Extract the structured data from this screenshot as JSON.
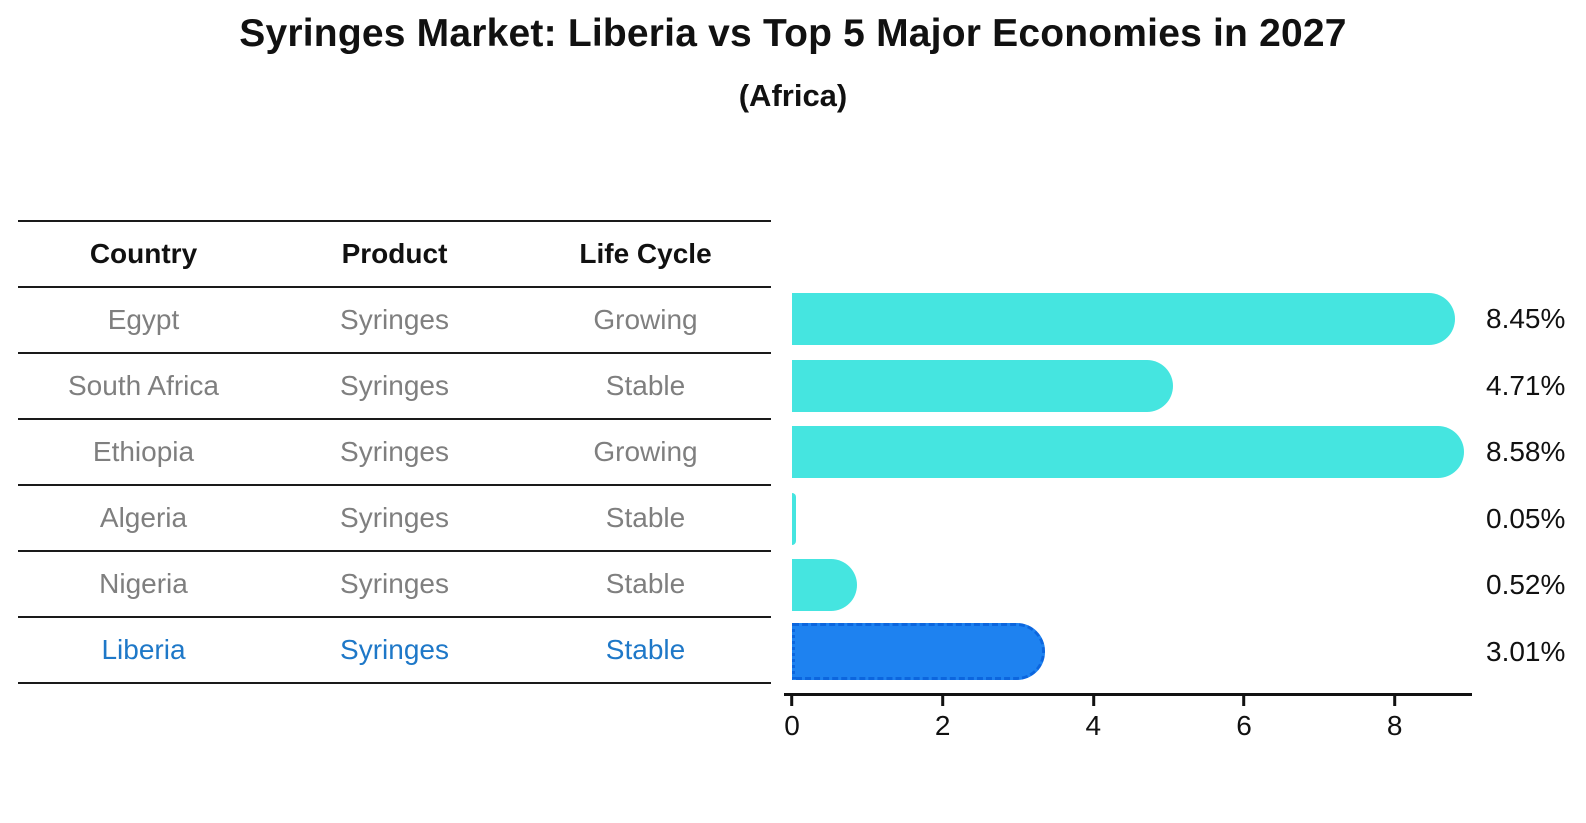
{
  "title": "Syringes Market: Liberia vs Top 5 Major Economies in 2027",
  "subtitle": "(Africa)",
  "table": {
    "headers": [
      "Country",
      "Product",
      "Life Cycle"
    ],
    "rows": [
      {
        "country": "Egypt",
        "product": "Syringes",
        "life_cycle": "Growing",
        "highlight": false
      },
      {
        "country": "South Africa",
        "product": "Syringes",
        "life_cycle": "Stable",
        "highlight": false
      },
      {
        "country": "Ethiopia",
        "product": "Syringes",
        "life_cycle": "Growing",
        "highlight": false
      },
      {
        "country": "Algeria",
        "product": "Syringes",
        "life_cycle": "Stable",
        "highlight": false
      },
      {
        "country": "Nigeria",
        "product": "Syringes",
        "life_cycle": "Stable",
        "highlight": false
      },
      {
        "country": "Liberia",
        "product": "Syringes",
        "life_cycle": "Stable",
        "highlight": true
      }
    ]
  },
  "chart_data": {
    "type": "bar",
    "orientation": "horizontal",
    "title": "Syringes Market: Liberia vs Top 5 Major Economies in 2027",
    "subtitle": "(Africa)",
    "categories": [
      "Egypt",
      "South Africa",
      "Ethiopia",
      "Algeria",
      "Nigeria",
      "Liberia"
    ],
    "values": [
      8.45,
      4.71,
      8.58,
      0.05,
      0.52,
      3.01
    ],
    "value_labels": [
      "8.45%",
      "4.71%",
      "8.58%",
      "0.05%",
      "0.52%",
      "3.01%"
    ],
    "unit": "percent",
    "xlim": [
      0,
      9
    ],
    "xticks": [
      0,
      2,
      4,
      6,
      8
    ],
    "grid": false,
    "legend": false,
    "highlight_index": 5
  },
  "colors": {
    "bar": "#45e5e0",
    "highlight_bar": "#1e82f0",
    "highlight_border": "#0c66de",
    "highlight_text": "#1e78c8",
    "table_text": "#7f7f7f",
    "axis": "#111111"
  }
}
